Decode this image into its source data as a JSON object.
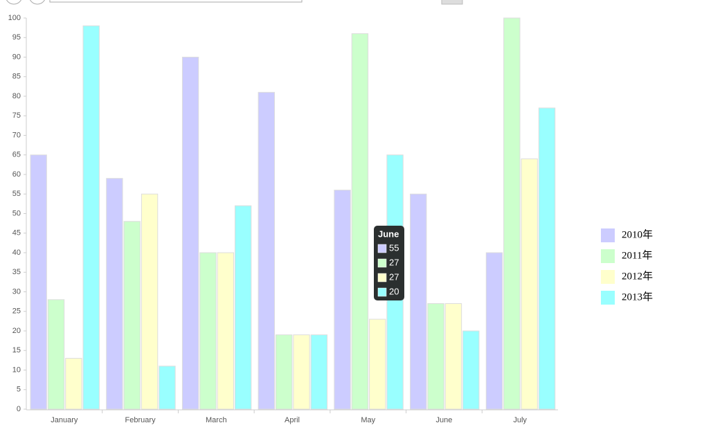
{
  "chart_data": {
    "type": "bar",
    "categories": [
      "January",
      "February",
      "March",
      "April",
      "May",
      "June",
      "July"
    ],
    "series": [
      {
        "name": "2010年",
        "color": "#ccccff",
        "values": [
          65,
          59,
          90,
          81,
          56,
          55,
          40
        ]
      },
      {
        "name": "2011年",
        "color": "#ccffcc",
        "values": [
          28,
          48,
          40,
          19,
          96,
          27,
          100
        ]
      },
      {
        "name": "2012年",
        "color": "#ffffcc",
        "values": [
          13,
          55,
          40,
          19,
          23,
          27,
          64
        ]
      },
      {
        "name": "2013年",
        "color": "#99ffff",
        "values": [
          98,
          11,
          52,
          19,
          65,
          20,
          77
        ]
      }
    ],
    "ylim": [
      0,
      100
    ],
    "yticks": [
      0,
      5,
      10,
      15,
      20,
      25,
      30,
      35,
      40,
      45,
      50,
      55,
      60,
      65,
      70,
      75,
      80,
      85,
      90,
      95,
      100
    ],
    "grid": false,
    "legend": "right"
  }
}
